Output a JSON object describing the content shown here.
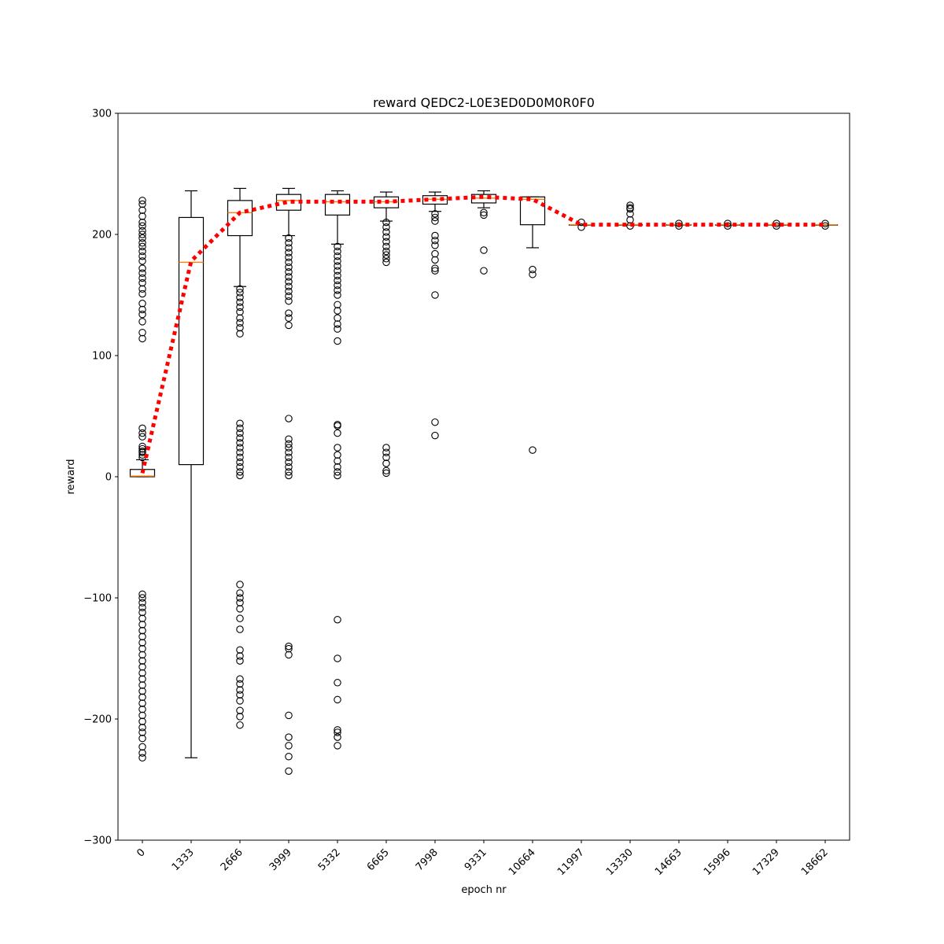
{
  "chart_data": {
    "type": "box",
    "title": "reward QEDC2-L0E3ED0D0M0R0F0",
    "xlabel": "epoch nr",
    "ylabel": "reward",
    "ylim": [
      -300,
      300
    ],
    "yticks": [
      -300,
      -200,
      -100,
      0,
      100,
      200,
      300
    ],
    "ytick_labels": [
      "−300",
      "−200",
      "−100",
      "0",
      "100",
      "200",
      "300"
    ],
    "categories": [
      "0",
      "1333",
      "2666",
      "3999",
      "5332",
      "6665",
      "7998",
      "9331",
      "10664",
      "11997",
      "13330",
      "14663",
      "15996",
      "17329",
      "18662"
    ],
    "colors": {
      "box": "#000000",
      "median": "#ff7f0e",
      "mean_line": "#ff0000"
    },
    "boxes": [
      {
        "whislo": 0,
        "q1": 0,
        "med": 0.5,
        "q3": 6,
        "whishi": 14,
        "fliers": [
          228,
          225,
          220,
          215,
          210,
          207,
          203,
          200,
          197,
          193,
          190,
          186,
          182,
          178,
          172,
          168,
          164,
          160,
          155,
          151,
          143,
          138,
          134,
          128,
          119,
          114,
          40,
          36,
          33,
          25,
          23,
          21,
          20,
          18,
          16,
          -97,
          -100,
          -104,
          -108,
          -112,
          -117,
          -122,
          -127,
          -132,
          -137,
          -142,
          -147,
          -152,
          -157,
          -162,
          -167,
          -172,
          -177,
          -182,
          -187,
          -192,
          -197,
          -202,
          -207,
          -211,
          -216,
          -223,
          -228,
          -232
        ]
      },
      {
        "whislo": -232,
        "q1": 10,
        "med": 177,
        "q3": 214,
        "whishi": 236,
        "fliers": []
      },
      {
        "whislo": 157,
        "q1": 199,
        "med": 218,
        "q3": 228,
        "whishi": 238,
        "fliers": [
          155,
          152,
          148,
          144,
          140,
          136,
          131,
          127,
          123,
          118,
          44,
          40,
          36,
          32,
          28,
          24,
          20,
          16,
          12,
          8,
          4,
          1,
          -89,
          -96,
          -100,
          -104,
          -109,
          -117,
          -126,
          -143,
          -148,
          -152,
          -167,
          -171,
          -176,
          -180,
          -185,
          -193,
          -198,
          -205
        ]
      },
      {
        "whislo": 199,
        "q1": 220,
        "med": 228,
        "q3": 233,
        "whishi": 238,
        "fliers": [
          197,
          193,
          189,
          185,
          181,
          177,
          173,
          169,
          165,
          161,
          157,
          153,
          149,
          145,
          135,
          131,
          125,
          48,
          31,
          27,
          24,
          20,
          16,
          12,
          8,
          4,
          1,
          -140,
          -142,
          -147,
          -197,
          -215,
          -222,
          -231,
          -243
        ]
      },
      {
        "whislo": 192,
        "q1": 216,
        "med": 227,
        "q3": 233,
        "whishi": 236,
        "fliers": [
          190,
          186,
          182,
          178,
          174,
          170,
          166,
          162,
          158,
          154,
          150,
          142,
          137,
          131,
          126,
          122,
          112,
          43,
          42,
          36,
          24,
          18,
          13,
          8,
          4,
          1,
          -118,
          -150,
          -170,
          -184,
          -209,
          -211,
          -215,
          -222
        ]
      },
      {
        "whislo": 211,
        "q1": 222,
        "med": 227,
        "q3": 231,
        "whishi": 235,
        "fliers": [
          210,
          206,
          202,
          198,
          194,
          190,
          186,
          183,
          180,
          177,
          24,
          20,
          16,
          11,
          5,
          3
        ]
      },
      {
        "whislo": 219,
        "q1": 225,
        "med": 229,
        "q3": 232,
        "whishi": 235,
        "fliers": [
          217,
          214,
          211,
          199,
          195,
          191,
          184,
          179,
          172,
          170,
          150,
          45,
          34
        ]
      },
      {
        "whislo": 222,
        "q1": 226,
        "med": 230,
        "q3": 233,
        "whishi": 236,
        "fliers": [
          218,
          216,
          187,
          170
        ]
      },
      {
        "whislo": 189,
        "q1": 208,
        "med": 229,
        "q3": 231,
        "whishi": 231,
        "fliers": [
          171,
          167,
          22
        ]
      },
      {
        "whislo": 208,
        "q1": 208,
        "med": 208,
        "q3": 208,
        "whishi": 208,
        "fliers": [
          210,
          206
        ]
      },
      {
        "whislo": 208,
        "q1": 208,
        "med": 208,
        "q3": 208,
        "whishi": 208,
        "fliers": [
          224,
          222,
          221,
          217,
          212,
          207
        ]
      },
      {
        "whislo": 208,
        "q1": 208,
        "med": 208,
        "q3": 208,
        "whishi": 208,
        "fliers": [
          209,
          207
        ]
      },
      {
        "whislo": 208,
        "q1": 208,
        "med": 208,
        "q3": 208,
        "whishi": 208,
        "fliers": [
          209,
          207
        ]
      },
      {
        "whislo": 208,
        "q1": 208,
        "med": 208,
        "q3": 208,
        "whishi": 208,
        "fliers": [
          209,
          207
        ]
      },
      {
        "whislo": 208,
        "q1": 208,
        "med": 208,
        "q3": 208,
        "whishi": 208,
        "fliers": [
          209,
          207
        ]
      }
    ],
    "mean_line": [
      3,
      178,
      218,
      227,
      227,
      227,
      229,
      231,
      229,
      208,
      208,
      208,
      208,
      208,
      208
    ],
    "grid": false,
    "legend": "none"
  }
}
